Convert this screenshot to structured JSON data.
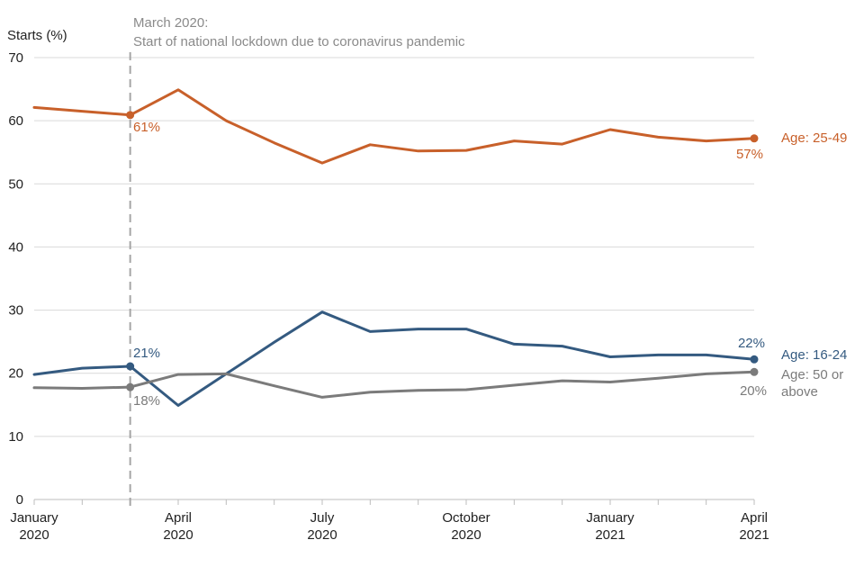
{
  "chart_data": {
    "type": "line",
    "ylabel": "Starts (%)",
    "ylim": [
      0,
      70
    ],
    "yticks": [
      "0",
      "10",
      "20",
      "30",
      "40",
      "50",
      "60",
      "70"
    ],
    "grid": true,
    "x": [
      "Jan 2020",
      "Feb 2020",
      "Mar 2020",
      "Apr 2020",
      "May 2020",
      "Jun 2020",
      "Jul 2020",
      "Aug 2020",
      "Sep 2020",
      "Oct 2020",
      "Nov 2020",
      "Dec 2020",
      "Jan 2021",
      "Feb 2021",
      "Mar 2021",
      "Apr 2021"
    ],
    "xtick_labels": [
      {
        "index": 0,
        "line1": "January",
        "line2": "2020"
      },
      {
        "index": 3,
        "line1": "April",
        "line2": "2020"
      },
      {
        "index": 6,
        "line1": "July",
        "line2": "2020"
      },
      {
        "index": 9,
        "line1": "October",
        "line2": "2020"
      },
      {
        "index": 12,
        "line1": "January",
        "line2": "2021"
      },
      {
        "index": 15,
        "line1": "April",
        "line2": "2021"
      }
    ],
    "annotation": {
      "index": 2,
      "line1": "March 2020:",
      "line2": "Start of national lockdown due to coronavirus pandemic"
    },
    "series": [
      {
        "name": "Age: 25-49",
        "label_lines": [
          "Age: 25-49"
        ],
        "color": "#c8602a",
        "values": [
          62.1,
          61.5,
          60.9,
          64.9,
          60.0,
          56.5,
          53.3,
          56.2,
          55.2,
          55.3,
          56.8,
          56.3,
          58.6,
          57.4,
          56.8,
          57.2
        ],
        "points": [
          {
            "index": 2,
            "label": "61%"
          },
          {
            "index": 15,
            "label": "57%"
          }
        ]
      },
      {
        "name": "Age: 16-24",
        "label_lines": [
          "Age: 16-24"
        ],
        "color": "#345a80",
        "values": [
          19.8,
          20.8,
          21.1,
          14.9,
          19.9,
          24.9,
          29.7,
          26.6,
          27.0,
          27.0,
          24.6,
          24.3,
          22.6,
          22.9,
          22.9,
          22.2
        ],
        "points": [
          {
            "index": 2,
            "label": "21%"
          },
          {
            "index": 15,
            "label": "22%"
          }
        ]
      },
      {
        "name": "Age: 50 or above",
        "label_lines": [
          "Age: 50 or",
          "above"
        ],
        "color": "#7b7b7b",
        "values": [
          17.7,
          17.6,
          17.8,
          19.8,
          19.9,
          18.0,
          16.2,
          17.0,
          17.3,
          17.4,
          18.1,
          18.8,
          18.6,
          19.2,
          19.9,
          20.2
        ],
        "points": [
          {
            "index": 2,
            "label": "18%"
          },
          {
            "index": 15,
            "label": "20%"
          }
        ]
      }
    ]
  }
}
